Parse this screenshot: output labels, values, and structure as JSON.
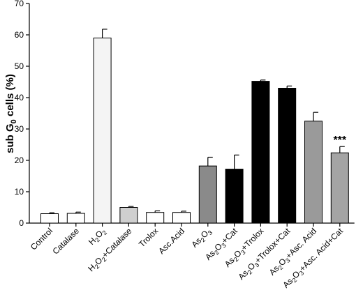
{
  "chart_data": {
    "type": "bar",
    "ylabel": "sub G",
    "ylabel_sub": "0",
    "ylabel_tail": " cells (%)",
    "ylim": [
      0,
      70
    ],
    "yticks": [
      "0",
      "10",
      "20",
      "30",
      "40",
      "50",
      "60",
      "70"
    ],
    "grid": false,
    "categories": [
      {
        "label": "Control",
        "parts": [
          {
            "t": "Control"
          }
        ]
      },
      {
        "label": "Catalase",
        "parts": [
          {
            "t": "Catalase"
          }
        ]
      },
      {
        "label": "H2O2",
        "parts": [
          {
            "t": "H"
          },
          {
            "t": "2",
            "sub": true
          },
          {
            "t": "O"
          },
          {
            "t": "2",
            "sub": true
          }
        ]
      },
      {
        "label": "H2O2+Catalase",
        "parts": [
          {
            "t": "H"
          },
          {
            "t": "2",
            "sub": true
          },
          {
            "t": "O"
          },
          {
            "t": "2",
            "sub": true
          },
          {
            "t": "+Catalase"
          }
        ]
      },
      {
        "label": "Trolox",
        "parts": [
          {
            "t": "Trolox"
          }
        ]
      },
      {
        "label": "Asc.Acid",
        "parts": [
          {
            "t": "Asc.Acid"
          }
        ]
      },
      {
        "label": "As2O3",
        "parts": [
          {
            "t": "As"
          },
          {
            "t": "2",
            "sub": true
          },
          {
            "t": "O"
          },
          {
            "t": "3",
            "sub": true
          }
        ]
      },
      {
        "label": "As2O3+Cat",
        "parts": [
          {
            "t": "As"
          },
          {
            "t": "2",
            "sub": true
          },
          {
            "t": "O"
          },
          {
            "t": "3",
            "sub": true
          },
          {
            "t": "+Cat"
          }
        ]
      },
      {
        "label": "As2O3+Trolox",
        "parts": [
          {
            "t": "As"
          },
          {
            "t": "2",
            "sub": true
          },
          {
            "t": "O"
          },
          {
            "t": "3",
            "sub": true
          },
          {
            "t": "+Trolox"
          }
        ]
      },
      {
        "label": "As2O3+Trolox+Cat",
        "parts": [
          {
            "t": "As"
          },
          {
            "t": "2",
            "sub": true
          },
          {
            "t": "O"
          },
          {
            "t": "3",
            "sub": true
          },
          {
            "t": "+Trolox+Cat"
          }
        ]
      },
      {
        "label": "As2O3+Asc. Acid",
        "parts": [
          {
            "t": "As"
          },
          {
            "t": "2",
            "sub": true
          },
          {
            "t": "O"
          },
          {
            "t": "3",
            "sub": true
          },
          {
            "t": "+Asc. Acid"
          }
        ]
      },
      {
        "label": "As2O3+Asc. Acid+Cat",
        "parts": [
          {
            "t": "As"
          },
          {
            "t": "2",
            "sub": true
          },
          {
            "t": "O"
          },
          {
            "t": "3",
            "sub": true
          },
          {
            "t": "+Asc. Acid+Cat"
          }
        ]
      }
    ],
    "values": [
      3.0,
      3.1,
      59.0,
      5.0,
      3.4,
      3.4,
      18.2,
      17.2,
      45.2,
      43.0,
      32.5,
      22.4
    ],
    "errors": [
      0.3,
      0.4,
      2.8,
      0.3,
      0.5,
      0.4,
      2.8,
      4.5,
      0.4,
      0.7,
      2.8,
      2.0
    ],
    "fills": [
      "#ffffff",
      "#ffffff",
      "#f4f4f4",
      "#cfcfcf",
      "#ffffff",
      "#ffffff",
      "#8a8a8a",
      "#000000",
      "#000000",
      "#000000",
      "#9a9a9a",
      "#a4a4a4"
    ],
    "annotations": [
      {
        "category_index": 11,
        "text": "***"
      }
    ]
  }
}
